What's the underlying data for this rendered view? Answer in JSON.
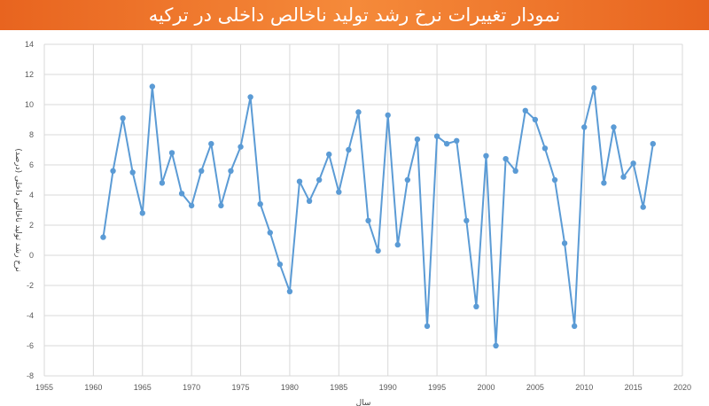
{
  "title": "نمودار تغییرات نرخ رشد تولید ناخالص داخلی در ترکیه",
  "colors": {
    "banner": "#ee7430",
    "line": "#5b9bd5",
    "grid": "#d9d9d9"
  },
  "chart_data": {
    "type": "line",
    "title": "نمودار تغییرات نرخ رشد تولید ناخالص داخلی در ترکیه",
    "xlabel": "سال",
    "ylabel": "نرخ رشد تولید ناخالص داخلی (درصد)",
    "xlim": [
      1955,
      2020
    ],
    "ylim": [
      -8,
      14
    ],
    "xticks": [
      1955,
      1960,
      1965,
      1970,
      1975,
      1980,
      1985,
      1990,
      1995,
      2000,
      2005,
      2010,
      2015,
      2020
    ],
    "yticks": [
      -8,
      -6,
      -4,
      -2,
      0,
      2,
      4,
      6,
      8,
      10,
      12,
      14
    ],
    "grid": true,
    "legend": "none",
    "series": [
      {
        "x": [
          1961,
          1962,
          1963,
          1964,
          1965,
          1966,
          1967,
          1968,
          1969,
          1970,
          1971,
          1972,
          1973,
          1974,
          1975,
          1976,
          1977,
          1978,
          1979,
          1980,
          1981,
          1982,
          1983,
          1984,
          1985,
          1986,
          1987,
          1988,
          1989,
          1990,
          1991,
          1992,
          1993,
          1994,
          1995,
          1996,
          1997,
          1998,
          1999,
          2000,
          2001,
          2002,
          2003,
          2004,
          2005,
          2006,
          2007,
          2008,
          2009,
          2010,
          2011,
          2012,
          2013,
          2014,
          2015,
          2016,
          2017
        ],
        "y": [
          1.2,
          5.6,
          9.1,
          5.5,
          2.8,
          11.2,
          4.8,
          6.8,
          4.1,
          3.3,
          5.6,
          7.4,
          3.3,
          5.6,
          7.2,
          10.5,
          3.4,
          1.5,
          -0.6,
          -2.4,
          4.9,
          3.6,
          5.0,
          6.7,
          4.2,
          7.0,
          9.5,
          2.3,
          0.3,
          9.3,
          0.7,
          5.0,
          7.7,
          -4.7,
          7.9,
          7.4,
          7.6,
          2.3,
          -3.4,
          6.6,
          -6.0,
          6.4,
          5.6,
          9.6,
          9.0,
          7.1,
          5.0,
          0.8,
          -4.7,
          8.5,
          11.1,
          4.8,
          8.5,
          5.2,
          6.1,
          3.2,
          7.4
        ]
      }
    ]
  }
}
